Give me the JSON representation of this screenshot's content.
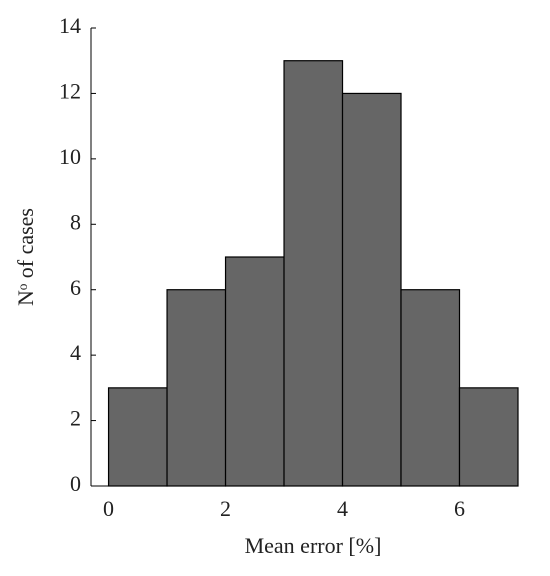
{
  "chart_data": {
    "type": "histogram",
    "x_label": "Mean error [%]",
    "y_label": "Nᵒ of cases",
    "bins": [
      0,
      1,
      2,
      3,
      4,
      5,
      6,
      7
    ],
    "values": [
      3,
      6,
      7,
      13,
      12,
      6,
      3
    ],
    "color": "#666666",
    "xlim": [
      -0.3,
      7
    ],
    "xticks": [
      0,
      2,
      4,
      6
    ],
    "ylim": [
      0,
      14
    ],
    "yticks": [
      0,
      2,
      4,
      6,
      8,
      10,
      12,
      14
    ]
  }
}
